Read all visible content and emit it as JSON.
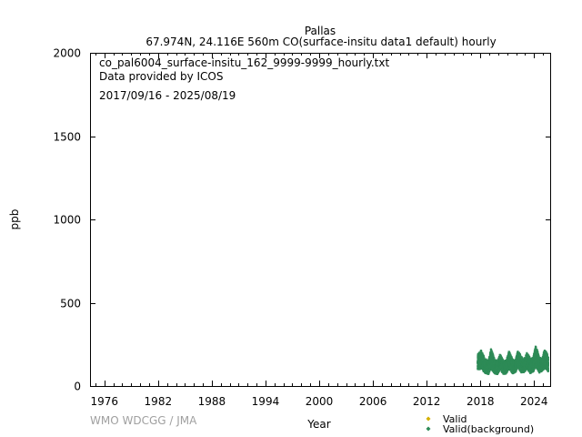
{
  "chart_data": {
    "type": "scatter",
    "title": "Pallas",
    "subtitle": "67.974N, 24.116E 560m    CO(surface-insitu data1 default) hourly",
    "annotations": [
      "co_pal6004_surface-insitu_162_9999-9999_hourly.txt",
      "Data provided by ICOS",
      "2017/09/16 - 2025/08/19"
    ],
    "xlabel": "Year",
    "ylabel": "ppb",
    "xlim": [
      1974.5,
      2025.8
    ],
    "ylim": [
      0,
      2000
    ],
    "x_ticks": [
      1976,
      1982,
      1988,
      1994,
      2000,
      2006,
      2012,
      2018,
      2024
    ],
    "x_tick_labels": [
      "1976",
      "1982",
      "1988",
      "1994",
      "2000",
      "2006",
      "2012",
      "2018",
      "2024"
    ],
    "y_ticks": [
      0,
      500,
      1000,
      1500,
      2000
    ],
    "y_tick_labels": [
      "0",
      "500",
      "1000",
      "1500",
      "2000"
    ],
    "grid": false,
    "legend_position": "bottom-right",
    "series": [
      {
        "name": "Valid",
        "color": "#d4b000",
        "marker": "diamond",
        "points": []
      },
      {
        "name": "Valid(background)",
        "color": "#2e8b57",
        "marker": "diamond",
        "date_range": [
          "2017/09/16",
          "2025/08/19"
        ],
        "envelope": [
          {
            "x": 2017.7,
            "min": 95,
            "max": 190
          },
          {
            "x": 2018.1,
            "min": 105,
            "max": 215
          },
          {
            "x": 2018.5,
            "min": 80,
            "max": 165
          },
          {
            "x": 2018.9,
            "min": 70,
            "max": 150
          },
          {
            "x": 2019.2,
            "min": 105,
            "max": 225
          },
          {
            "x": 2019.6,
            "min": 75,
            "max": 160
          },
          {
            "x": 2019.9,
            "min": 70,
            "max": 150
          },
          {
            "x": 2020.2,
            "min": 100,
            "max": 190
          },
          {
            "x": 2020.6,
            "min": 70,
            "max": 150
          },
          {
            "x": 2020.9,
            "min": 75,
            "max": 155
          },
          {
            "x": 2021.2,
            "min": 105,
            "max": 210
          },
          {
            "x": 2021.6,
            "min": 75,
            "max": 160
          },
          {
            "x": 2021.9,
            "min": 80,
            "max": 150
          },
          {
            "x": 2022.2,
            "min": 110,
            "max": 215
          },
          {
            "x": 2022.6,
            "min": 80,
            "max": 175
          },
          {
            "x": 2022.9,
            "min": 80,
            "max": 160
          },
          {
            "x": 2023.2,
            "min": 105,
            "max": 200
          },
          {
            "x": 2023.6,
            "min": 75,
            "max": 165
          },
          {
            "x": 2023.9,
            "min": 85,
            "max": 170
          },
          {
            "x": 2024.2,
            "min": 115,
            "max": 245
          },
          {
            "x": 2024.6,
            "min": 80,
            "max": 170
          },
          {
            "x": 2024.9,
            "min": 90,
            "max": 165
          },
          {
            "x": 2025.2,
            "min": 110,
            "max": 225
          },
          {
            "x": 2025.6,
            "min": 85,
            "max": 175
          }
        ]
      }
    ]
  },
  "credit": "WMO WDCGG / JMA"
}
